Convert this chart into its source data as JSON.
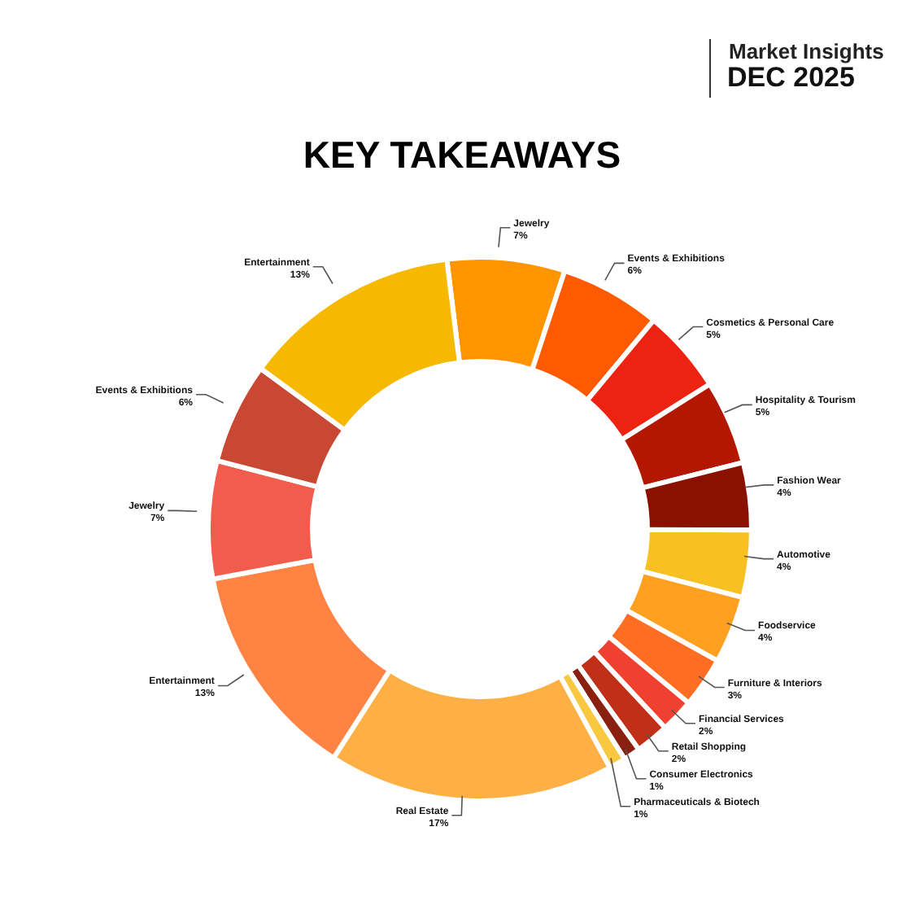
{
  "chart_data": {
    "type": "donut",
    "title": "KEY TAKEAWAYS",
    "annotations": [
      "Market Insights",
      "DEC 2025"
    ],
    "categories": [
      "Jewelry",
      "Events & Exhibitions",
      "Cosmetics & Personal Care",
      "Hospitality & Tourism",
      "Fashion Wear",
      "Automotive",
      "Foodservice",
      "Furniture & Interiors",
      "Financial Services",
      "Retail Shopping",
      "Consumer Electronics",
      "Pharmaceuticals & Biotech",
      "Real Estate",
      "Entertainment",
      "Jewelry",
      "Events & Exhibitions",
      "Entertainment"
    ],
    "values": [
      7,
      6,
      5,
      5,
      4,
      4,
      4,
      3,
      2,
      2,
      1,
      1,
      17,
      13,
      7,
      6,
      13
    ],
    "value_labels": [
      "7%",
      "6%",
      "5%",
      "5%",
      "4%",
      "4%",
      "4%",
      "3%",
      "2%",
      "2%",
      "1%",
      "1%",
      "17%",
      "13%",
      "7%",
      "6%",
      "13%"
    ],
    "colors": [
      "#ff9500",
      "#ff5a00",
      "#ee2211",
      "#b41700",
      "#8a1000",
      "#f8c020",
      "#ffa020",
      "#ff6e22",
      "#ef4030",
      "#c03018",
      "#8a2010",
      "#f8c840",
      "#ffb045",
      "#ff8444",
      "#f25c4c",
      "#c84834",
      "#f7b800"
    ],
    "legend": false
  }
}
